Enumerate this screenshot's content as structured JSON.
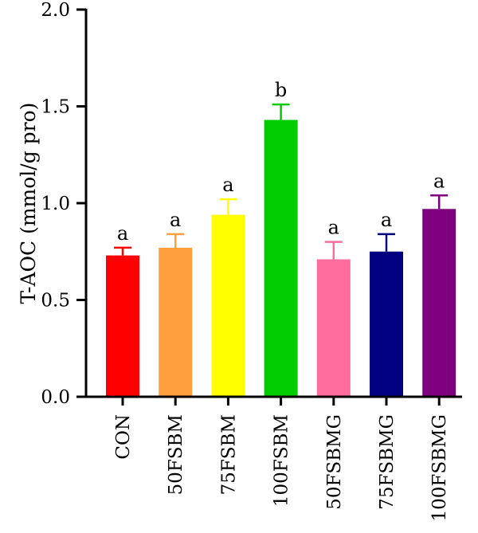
{
  "chart_data": {
    "type": "bar",
    "ylabel": "T-AOC (mmol/g pro)",
    "xlabel": "",
    "ylim": [
      0,
      2.0
    ],
    "yticks": [
      "0.0",
      "0.5",
      "1.0",
      "1.5",
      "2.0"
    ],
    "ytick_values": [
      0,
      0.5,
      1.0,
      1.5,
      2.0
    ],
    "categories": [
      "CON",
      "50FSBM",
      "75FSBM",
      "100FSBM",
      "50FSBMG",
      "75FSBMG",
      "100FSBMG"
    ],
    "values": [
      0.73,
      0.77,
      0.94,
      1.43,
      0.71,
      0.75,
      0.97
    ],
    "errors": [
      0.04,
      0.07,
      0.08,
      0.08,
      0.09,
      0.09,
      0.07
    ],
    "significance": [
      "a",
      "a",
      "a",
      "b",
      "a",
      "a",
      "a"
    ],
    "colors": [
      "#ff0000",
      "#ff9f3f",
      "#ffff00",
      "#00cc00",
      "#ff6d9e",
      "#000080",
      "#7f007f"
    ],
    "legend": "none",
    "grid": false
  }
}
